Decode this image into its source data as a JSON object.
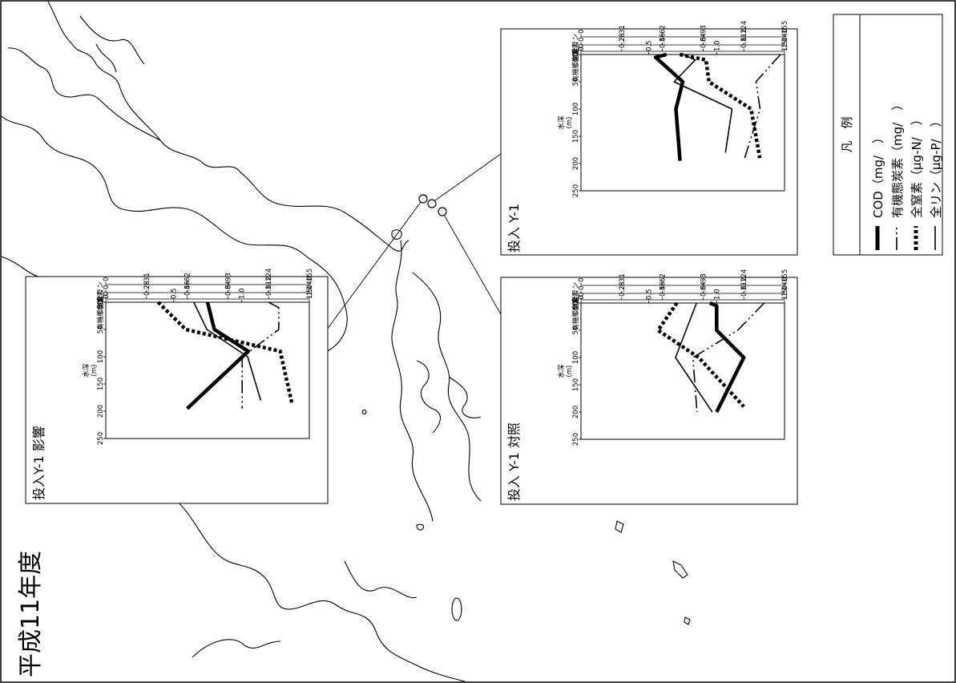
{
  "page_title": "平成11年度",
  "legend": {
    "heading": "凡　例",
    "items": [
      {
        "label": "COD（mg/　）",
        "style": "thick-solid"
      },
      {
        "label": "有機態炭素（mg/　）",
        "style": "dash-dot"
      },
      {
        "label": "全窒素（μg-N/　）",
        "style": "dotted"
      },
      {
        "label": "全リン（μg-P/　）",
        "style": "thin-solid"
      }
    ]
  },
  "station_markers": [
    "station-1",
    "station-2",
    "station-3"
  ],
  "charts": [
    {
      "id": "impact",
      "title": "投入Y-1 影響",
      "axis_names": {
        "tp": "全リン",
        "tn": "全窒素",
        "toc": "有機態炭素",
        "cod": "COD"
      },
      "depth_label": "水深",
      "depth_unit": "(m)",
      "tick_labels": {
        "tp": [
          "0",
          "31",
          "62",
          "93",
          "124",
          "155"
        ],
        "tn": [
          "0",
          "28",
          "56",
          "84",
          "112",
          "140"
        ],
        "toc": [
          "0",
          "0.2",
          "0.4",
          "0.6",
          "0.8",
          "1.0"
        ],
        "cod": [
          "0",
          "0.5",
          "1.0",
          "1.5"
        ],
        "depth": [
          "0",
          "50",
          "100",
          "150",
          "200",
          "250"
        ]
      }
    },
    {
      "id": "y1",
      "title": "投入 Y-1",
      "axis_names": {
        "tp": "全リン",
        "tn": "全窒素",
        "toc": "有機態炭素",
        "cod": "COD"
      },
      "depth_label": "水深",
      "depth_unit": "(m)",
      "tick_labels": {
        "tp": [
          "0",
          "31",
          "62",
          "93",
          "124",
          "155"
        ],
        "tn": [
          "0",
          "28",
          "56",
          "84",
          "112",
          "140"
        ],
        "toc": [
          "0",
          "0.2",
          "0.4",
          "0.6",
          "0.8",
          "1.0"
        ],
        "cod": [
          "0",
          "0.5",
          "1.0",
          "1.5"
        ],
        "depth": [
          "0",
          "50",
          "100",
          "150",
          "200",
          "250"
        ]
      }
    },
    {
      "id": "control",
      "title": "投入 Y-1 対照",
      "axis_names": {
        "tp": "全リン",
        "tn": "全窒素",
        "toc": "有機態炭素",
        "cod": "COD"
      },
      "depth_label": "水深",
      "depth_unit": "(m)",
      "tick_labels": {
        "tp": [
          "0",
          "31",
          "62",
          "93",
          "124",
          "155"
        ],
        "tn": [
          "0",
          "28",
          "56",
          "84",
          "112",
          "140"
        ],
        "toc": [
          "0",
          "0.2",
          "0.4",
          "0.6",
          "0.8",
          "1.0"
        ],
        "cod": [
          "0",
          "0.5",
          "1.0",
          "1.5"
        ],
        "depth": [
          "0",
          "50",
          "100",
          "150",
          "200",
          "250"
        ]
      }
    }
  ],
  "chart_data": [
    {
      "type": "line",
      "title": "投入Y-1 影響",
      "xlabel": "水深 (m)",
      "xlim": [
        0,
        250
      ],
      "ylim": [
        0,
        1.5
      ],
      "ylabel": "COD",
      "series": [
        {
          "name": "COD",
          "x": [
            0,
            50,
            90,
            195
          ],
          "values": [
            0.75,
            0.8,
            1.05,
            0.6
          ]
        },
        {
          "name": "有機態炭素",
          "x": [
            0,
            10,
            50,
            100,
            195
          ],
          "values": [
            0.8,
            0.85,
            0.85,
            0.67,
            0.67
          ]
        },
        {
          "name": "全窒素",
          "x": [
            0,
            50,
            90,
            185
          ],
          "values": [
            36,
            55,
            120,
            128
          ]
        },
        {
          "name": "全リン",
          "x": [
            0,
            50,
            100,
            180
          ],
          "values": [
            67,
            77,
            108,
            118
          ]
        }
      ]
    },
    {
      "type": "line",
      "title": "投入 Y-1",
      "xlabel": "水深 (m)",
      "xlim": [
        0,
        250
      ],
      "ylim": [
        0,
        1.5
      ],
      "ylabel": "COD",
      "series": [
        {
          "name": "COD",
          "x": [
            0,
            5,
            50,
            100,
            195
          ],
          "values": [
            0.63,
            0.55,
            0.75,
            0.7,
            0.73
          ]
        },
        {
          "name": "有機態炭素",
          "x": [
            0,
            50,
            100,
            195
          ],
          "values": [
            0.98,
            0.86,
            0.88,
            0.8
          ]
        },
        {
          "name": "全窒素",
          "x": [
            0,
            10,
            50,
            100,
            190
          ],
          "values": [
            68,
            86,
            88,
            117,
            123
          ]
        },
        {
          "name": "全リン",
          "x": [
            0,
            10,
            50,
            100,
            180
          ],
          "values": [
            78,
            87,
            71,
            115,
            110
          ]
        }
      ]
    },
    {
      "type": "line",
      "title": "投入 Y-1 対照",
      "xlabel": "水深 (m)",
      "xlim": [
        0,
        250
      ],
      "ylim": [
        0,
        1.5
      ],
      "ylabel": "COD",
      "series": [
        {
          "name": "COD",
          "x": [
            0,
            5,
            50,
            100,
            200
          ],
          "values": [
            0.95,
            1.0,
            1.0,
            1.2,
            1.0
          ]
        },
        {
          "name": "有機態炭素",
          "x": [
            0,
            50,
            100,
            200
          ],
          "values": [
            0.9,
            0.77,
            0.55,
            0.57
          ]
        },
        {
          "name": "全窒素",
          "x": [
            0,
            50,
            100,
            190
          ],
          "values": [
            66,
            53,
            81,
            112
          ]
        },
        {
          "name": "全リン",
          "x": [
            0,
            50,
            100,
            200
          ],
          "values": [
            88,
            80,
            72,
            100
          ]
        }
      ]
    }
  ]
}
